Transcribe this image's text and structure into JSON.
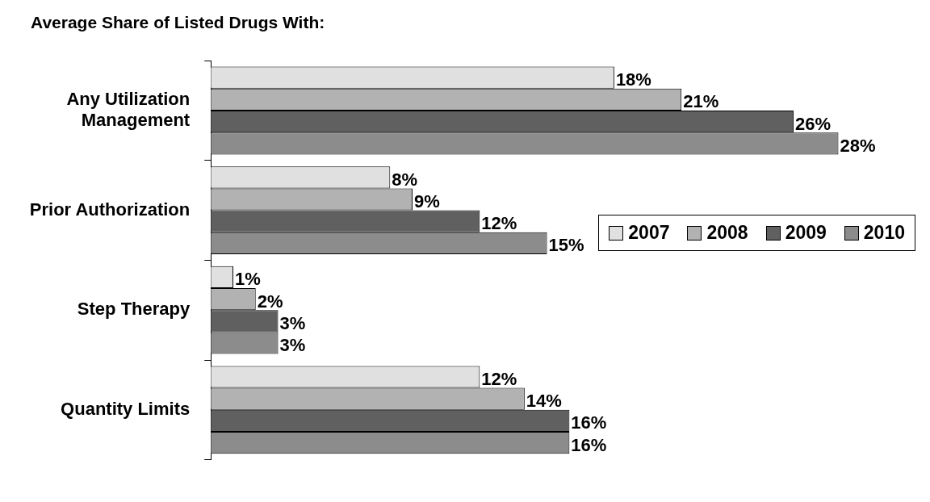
{
  "chart_data": {
    "type": "bar",
    "orientation": "horizontal",
    "title": "Average Share of Listed Drugs With:",
    "categories": [
      "Any Utilization Management",
      "Prior Authorization",
      "Step Therapy",
      "Quantity Limits"
    ],
    "series": [
      {
        "name": "2007",
        "color": "#e0e0e0",
        "values": [
          18,
          8,
          1,
          12
        ],
        "value_labels": [
          "18%",
          "8%",
          "1%",
          "12%"
        ]
      },
      {
        "name": "2008",
        "color": "#b2b2b2",
        "values": [
          21,
          9,
          2,
          14
        ],
        "value_labels": [
          "21%",
          "9%",
          "2%",
          "14%"
        ]
      },
      {
        "name": "2009",
        "color": "#606060",
        "values": [
          26,
          12,
          3,
          16
        ],
        "value_labels": [
          "26%",
          "12%",
          "3%",
          "16%"
        ]
      },
      {
        "name": "2010",
        "color": "#8c8c8c",
        "values": [
          28,
          15,
          3,
          16
        ],
        "value_labels": [
          "28%",
          "15%",
          "3%",
          "16%"
        ]
      }
    ],
    "legend": "right",
    "grid": false,
    "tick_labels": "y"
  }
}
